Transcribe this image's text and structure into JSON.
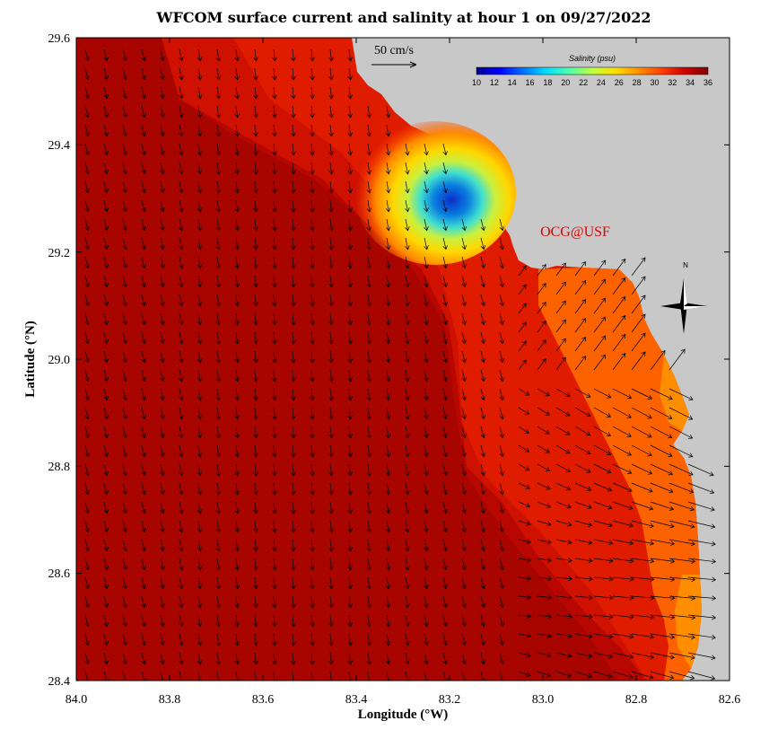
{
  "title": "WFCOM surface current and salinity at hour 1 on 09/27/2022",
  "axes": {
    "xlabel": "Longitude (°W)",
    "ylabel": "Latitude (°N)",
    "x_ticks": [
      "84.0",
      "83.8",
      "83.6",
      "83.4",
      "83.2",
      "83.0",
      "82.8",
      "82.6"
    ],
    "y_ticks": [
      "29.6",
      "29.4",
      "29.2",
      "29.0",
      "28.8",
      "28.6",
      "28.4"
    ],
    "x_range_lon_w": [
      84.0,
      82.6
    ],
    "y_range_lat_n": [
      28.4,
      29.6
    ]
  },
  "colorbar": {
    "title": "Salinity (psu)",
    "ticks": [
      "10",
      "12",
      "14",
      "16",
      "18",
      "20",
      "22",
      "24",
      "26",
      "28",
      "30",
      "32",
      "34",
      "36"
    ],
    "range": [
      10,
      36
    ],
    "colors": [
      "#00008f",
      "#0000ff",
      "#006fff",
      "#00dfff",
      "#4fffaf",
      "#bfff3f",
      "#ffdf00",
      "#ff8f00",
      "#ff3f00",
      "#cf0000",
      "#7f0000"
    ]
  },
  "vector_scale": {
    "label": "50 cm/s"
  },
  "brand": "OCG@USF",
  "north_arrow": {
    "label": "N"
  },
  "colors": {
    "land": "#c8c8c8",
    "sea_deep": "#9a0000",
    "sea_mid": "#e01c00",
    "sea_coast": "#ff6a00",
    "fresh_core": "#0a3cd0"
  }
}
